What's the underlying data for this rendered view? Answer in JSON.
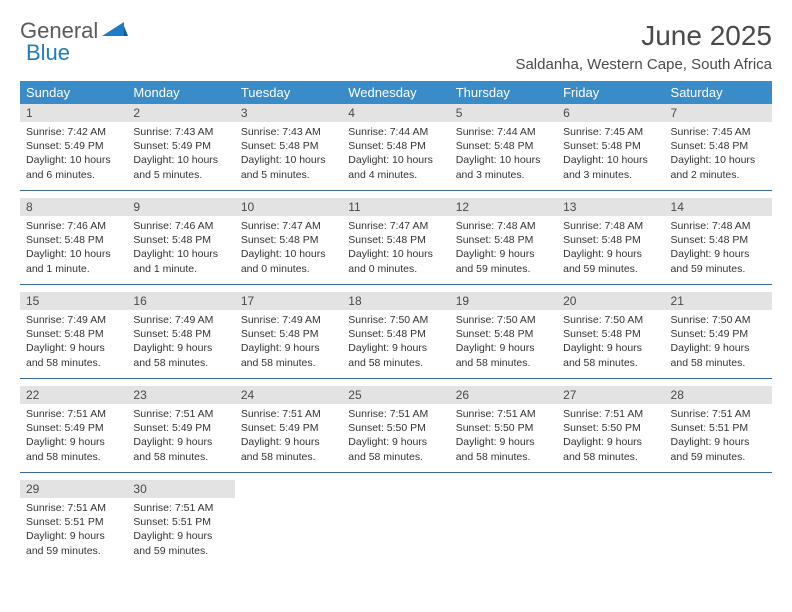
{
  "brand": {
    "word1": "General",
    "word2": "Blue"
  },
  "title": "June 2025",
  "location": "Saldanha, Western Cape, South Africa",
  "colors": {
    "header_bg": "#3a8cc9",
    "header_text": "#ffffff",
    "daynum_bg": "#e3e3e3",
    "rule": "#3a6a94",
    "logo_gray": "#5a5a5a",
    "logo_blue": "#1e7cc4"
  },
  "dow": [
    "Sunday",
    "Monday",
    "Tuesday",
    "Wednesday",
    "Thursday",
    "Friday",
    "Saturday"
  ],
  "weeks": [
    [
      {
        "n": "1",
        "sunrise": "7:42 AM",
        "sunset": "5:49 PM",
        "daylight": "10 hours and 6 minutes."
      },
      {
        "n": "2",
        "sunrise": "7:43 AM",
        "sunset": "5:49 PM",
        "daylight": "10 hours and 5 minutes."
      },
      {
        "n": "3",
        "sunrise": "7:43 AM",
        "sunset": "5:48 PM",
        "daylight": "10 hours and 5 minutes."
      },
      {
        "n": "4",
        "sunrise": "7:44 AM",
        "sunset": "5:48 PM",
        "daylight": "10 hours and 4 minutes."
      },
      {
        "n": "5",
        "sunrise": "7:44 AM",
        "sunset": "5:48 PM",
        "daylight": "10 hours and 3 minutes."
      },
      {
        "n": "6",
        "sunrise": "7:45 AM",
        "sunset": "5:48 PM",
        "daylight": "10 hours and 3 minutes."
      },
      {
        "n": "7",
        "sunrise": "7:45 AM",
        "sunset": "5:48 PM",
        "daylight": "10 hours and 2 minutes."
      }
    ],
    [
      {
        "n": "8",
        "sunrise": "7:46 AM",
        "sunset": "5:48 PM",
        "daylight": "10 hours and 1 minute."
      },
      {
        "n": "9",
        "sunrise": "7:46 AM",
        "sunset": "5:48 PM",
        "daylight": "10 hours and 1 minute."
      },
      {
        "n": "10",
        "sunrise": "7:47 AM",
        "sunset": "5:48 PM",
        "daylight": "10 hours and 0 minutes."
      },
      {
        "n": "11",
        "sunrise": "7:47 AM",
        "sunset": "5:48 PM",
        "daylight": "10 hours and 0 minutes."
      },
      {
        "n": "12",
        "sunrise": "7:48 AM",
        "sunset": "5:48 PM",
        "daylight": "9 hours and 59 minutes."
      },
      {
        "n": "13",
        "sunrise": "7:48 AM",
        "sunset": "5:48 PM",
        "daylight": "9 hours and 59 minutes."
      },
      {
        "n": "14",
        "sunrise": "7:48 AM",
        "sunset": "5:48 PM",
        "daylight": "9 hours and 59 minutes."
      }
    ],
    [
      {
        "n": "15",
        "sunrise": "7:49 AM",
        "sunset": "5:48 PM",
        "daylight": "9 hours and 58 minutes."
      },
      {
        "n": "16",
        "sunrise": "7:49 AM",
        "sunset": "5:48 PM",
        "daylight": "9 hours and 58 minutes."
      },
      {
        "n": "17",
        "sunrise": "7:49 AM",
        "sunset": "5:48 PM",
        "daylight": "9 hours and 58 minutes."
      },
      {
        "n": "18",
        "sunrise": "7:50 AM",
        "sunset": "5:48 PM",
        "daylight": "9 hours and 58 minutes."
      },
      {
        "n": "19",
        "sunrise": "7:50 AM",
        "sunset": "5:48 PM",
        "daylight": "9 hours and 58 minutes."
      },
      {
        "n": "20",
        "sunrise": "7:50 AM",
        "sunset": "5:48 PM",
        "daylight": "9 hours and 58 minutes."
      },
      {
        "n": "21",
        "sunrise": "7:50 AM",
        "sunset": "5:49 PM",
        "daylight": "9 hours and 58 minutes."
      }
    ],
    [
      {
        "n": "22",
        "sunrise": "7:51 AM",
        "sunset": "5:49 PM",
        "daylight": "9 hours and 58 minutes."
      },
      {
        "n": "23",
        "sunrise": "7:51 AM",
        "sunset": "5:49 PM",
        "daylight": "9 hours and 58 minutes."
      },
      {
        "n": "24",
        "sunrise": "7:51 AM",
        "sunset": "5:49 PM",
        "daylight": "9 hours and 58 minutes."
      },
      {
        "n": "25",
        "sunrise": "7:51 AM",
        "sunset": "5:50 PM",
        "daylight": "9 hours and 58 minutes."
      },
      {
        "n": "26",
        "sunrise": "7:51 AM",
        "sunset": "5:50 PM",
        "daylight": "9 hours and 58 minutes."
      },
      {
        "n": "27",
        "sunrise": "7:51 AM",
        "sunset": "5:50 PM",
        "daylight": "9 hours and 58 minutes."
      },
      {
        "n": "28",
        "sunrise": "7:51 AM",
        "sunset": "5:51 PM",
        "daylight": "9 hours and 59 minutes."
      }
    ],
    [
      {
        "n": "29",
        "sunrise": "7:51 AM",
        "sunset": "5:51 PM",
        "daylight": "9 hours and 59 minutes."
      },
      {
        "n": "30",
        "sunrise": "7:51 AM",
        "sunset": "5:51 PM",
        "daylight": "9 hours and 59 minutes."
      },
      null,
      null,
      null,
      null,
      null
    ]
  ],
  "labels": {
    "sunrise": "Sunrise:",
    "sunset": "Sunset:",
    "daylight": "Daylight:"
  }
}
